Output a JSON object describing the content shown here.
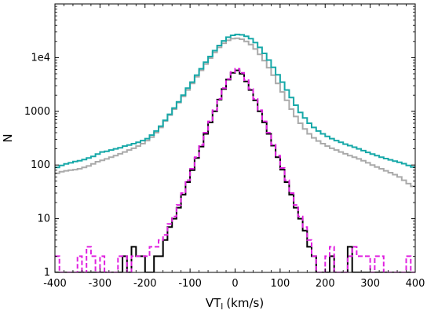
{
  "chart_data": {
    "type": "line",
    "style": "step-histogram",
    "xlabel": "VT",
    "xlabel_subscript": "l",
    "xlabel_unit": "(km/s)",
    "ylabel": "N",
    "xlim": [
      -400,
      400
    ],
    "ylim": [
      1,
      100000
    ],
    "yscale": "log",
    "grid": false,
    "bin_width": 10,
    "x_ticks": [
      -400,
      -300,
      -200,
      -100,
      0,
      100,
      200,
      300,
      400
    ],
    "x_tick_labels": [
      "-400",
      "-300",
      "-200",
      "-100",
      "0",
      "100",
      "200",
      "300",
      "400"
    ],
    "y_ticks": [
      1,
      10,
      100,
      1000,
      10000
    ],
    "y_tick_labels": [
      "1",
      "10",
      "100",
      "1000",
      "1e4"
    ],
    "series": [
      {
        "color": "#aaaaaa",
        "dashed": false,
        "values": [
          [
            -400,
            70
          ],
          [
            -390,
            75
          ],
          [
            -380,
            78
          ],
          [
            -370,
            80
          ],
          [
            -360,
            82
          ],
          [
            -350,
            85
          ],
          [
            -340,
            90
          ],
          [
            -330,
            96
          ],
          [
            -320,
            105
          ],
          [
            -310,
            115
          ],
          [
            -300,
            122
          ],
          [
            -290,
            130
          ],
          [
            -280,
            140
          ],
          [
            -270,
            150
          ],
          [
            -260,
            162
          ],
          [
            -250,
            175
          ],
          [
            -240,
            190
          ],
          [
            -230,
            205
          ],
          [
            -220,
            225
          ],
          [
            -210,
            250
          ],
          [
            -200,
            285
          ],
          [
            -190,
            330
          ],
          [
            -180,
            400
          ],
          [
            -170,
            500
          ],
          [
            -160,
            660
          ],
          [
            -150,
            850
          ],
          [
            -140,
            1100
          ],
          [
            -130,
            1450
          ],
          [
            -120,
            1900
          ],
          [
            -110,
            2500
          ],
          [
            -100,
            3300
          ],
          [
            -90,
            4400
          ],
          [
            -80,
            5800
          ],
          [
            -70,
            7600
          ],
          [
            -60,
            9800
          ],
          [
            -50,
            12500
          ],
          [
            -40,
            15500
          ],
          [
            -30,
            18500
          ],
          [
            -20,
            21000
          ],
          [
            -10,
            22500
          ],
          [
            0,
            23000
          ],
          [
            10,
            22000
          ],
          [
            20,
            20000
          ],
          [
            30,
            17500
          ],
          [
            40,
            14500
          ],
          [
            50,
            11500
          ],
          [
            60,
            8800
          ],
          [
            70,
            6500
          ],
          [
            80,
            4700
          ],
          [
            90,
            3300
          ],
          [
            100,
            2300
          ],
          [
            110,
            1600
          ],
          [
            120,
            1100
          ],
          [
            130,
            800
          ],
          [
            140,
            600
          ],
          [
            150,
            470
          ],
          [
            160,
            380
          ],
          [
            170,
            320
          ],
          [
            180,
            280
          ],
          [
            190,
            250
          ],
          [
            200,
            225
          ],
          [
            210,
            205
          ],
          [
            220,
            190
          ],
          [
            230,
            175
          ],
          [
            240,
            162
          ],
          [
            250,
            150
          ],
          [
            260,
            140
          ],
          [
            270,
            130
          ],
          [
            280,
            120
          ],
          [
            290,
            110
          ],
          [
            300,
            100
          ],
          [
            310,
            92
          ],
          [
            320,
            85
          ],
          [
            330,
            78
          ],
          [
            340,
            72
          ],
          [
            350,
            66
          ],
          [
            360,
            60
          ],
          [
            370,
            52
          ],
          [
            380,
            45
          ],
          [
            390,
            40
          ]
        ]
      },
      {
        "color": "#16a8a8",
        "dashed": false,
        "values": [
          [
            -400,
            90
          ],
          [
            -390,
            98
          ],
          [
            -380,
            105
          ],
          [
            -370,
            110
          ],
          [
            -360,
            116
          ],
          [
            -350,
            120
          ],
          [
            -340,
            126
          ],
          [
            -330,
            135
          ],
          [
            -320,
            145
          ],
          [
            -310,
            160
          ],
          [
            -300,
            175
          ],
          [
            -290,
            180
          ],
          [
            -280,
            190
          ],
          [
            -270,
            200
          ],
          [
            -260,
            210
          ],
          [
            -250,
            225
          ],
          [
            -240,
            235
          ],
          [
            -230,
            250
          ],
          [
            -220,
            265
          ],
          [
            -210,
            285
          ],
          [
            -200,
            310
          ],
          [
            -190,
            360
          ],
          [
            -180,
            430
          ],
          [
            -170,
            530
          ],
          [
            -160,
            680
          ],
          [
            -150,
            880
          ],
          [
            -140,
            1150
          ],
          [
            -130,
            1500
          ],
          [
            -120,
            2000
          ],
          [
            -110,
            2700
          ],
          [
            -100,
            3500
          ],
          [
            -90,
            4700
          ],
          [
            -80,
            6200
          ],
          [
            -70,
            8200
          ],
          [
            -60,
            10500
          ],
          [
            -50,
            13500
          ],
          [
            -40,
            16800
          ],
          [
            -30,
            20500
          ],
          [
            -20,
            24000
          ],
          [
            -10,
            26000
          ],
          [
            0,
            27000
          ],
          [
            10,
            26500
          ],
          [
            20,
            25000
          ],
          [
            30,
            22500
          ],
          [
            40,
            19000
          ],
          [
            50,
            15500
          ],
          [
            60,
            12000
          ],
          [
            70,
            9000
          ],
          [
            80,
            6600
          ],
          [
            90,
            4800
          ],
          [
            100,
            3500
          ],
          [
            110,
            2500
          ],
          [
            120,
            1800
          ],
          [
            130,
            1300
          ],
          [
            140,
            950
          ],
          [
            150,
            750
          ],
          [
            160,
            600
          ],
          [
            170,
            500
          ],
          [
            180,
            430
          ],
          [
            190,
            380
          ],
          [
            200,
            340
          ],
          [
            210,
            310
          ],
          [
            220,
            285
          ],
          [
            230,
            265
          ],
          [
            240,
            245
          ],
          [
            250,
            230
          ],
          [
            260,
            215
          ],
          [
            270,
            200
          ],
          [
            280,
            185
          ],
          [
            290,
            172
          ],
          [
            300,
            160
          ],
          [
            310,
            150
          ],
          [
            320,
            140
          ],
          [
            330,
            132
          ],
          [
            340,
            125
          ],
          [
            350,
            118
          ],
          [
            360,
            112
          ],
          [
            370,
            106
          ],
          [
            380,
            98
          ],
          [
            390,
            92
          ]
        ]
      },
      {
        "color": "#000000",
        "dashed": false,
        "values": [
          [
            -400,
            1
          ],
          [
            -390,
            1
          ],
          [
            -380,
            1
          ],
          [
            -370,
            1
          ],
          [
            -360,
            1
          ],
          [
            -350,
            1
          ],
          [
            -340,
            1
          ],
          [
            -330,
            1
          ],
          [
            -320,
            1
          ],
          [
            -310,
            1
          ],
          [
            -300,
            1
          ],
          [
            -290,
            1
          ],
          [
            -280,
            1
          ],
          [
            -270,
            1
          ],
          [
            -260,
            1
          ],
          [
            -250,
            2
          ],
          [
            -240,
            1
          ],
          [
            -230,
            3
          ],
          [
            -220,
            2
          ],
          [
            -210,
            2
          ],
          [
            -200,
            1
          ],
          [
            -190,
            1
          ],
          [
            -180,
            2
          ],
          [
            -170,
            2
          ],
          [
            -160,
            4
          ],
          [
            -150,
            7
          ],
          [
            -140,
            10
          ],
          [
            -130,
            16
          ],
          [
            -120,
            28
          ],
          [
            -110,
            48
          ],
          [
            -100,
            80
          ],
          [
            -90,
            135
          ],
          [
            -80,
            220
          ],
          [
            -70,
            380
          ],
          [
            -60,
            620
          ],
          [
            -50,
            1000
          ],
          [
            -40,
            1650
          ],
          [
            -30,
            2600
          ],
          [
            -20,
            3900
          ],
          [
            -10,
            5200
          ],
          [
            0,
            5800
          ],
          [
            10,
            5000
          ],
          [
            20,
            3600
          ],
          [
            30,
            2500
          ],
          [
            40,
            1600
          ],
          [
            50,
            1000
          ],
          [
            60,
            620
          ],
          [
            70,
            380
          ],
          [
            80,
            230
          ],
          [
            90,
            140
          ],
          [
            100,
            82
          ],
          [
            110,
            48
          ],
          [
            120,
            28
          ],
          [
            130,
            16
          ],
          [
            140,
            10
          ],
          [
            150,
            6
          ],
          [
            160,
            3
          ],
          [
            170,
            2
          ],
          [
            180,
            1
          ],
          [
            190,
            1
          ],
          [
            200,
            1
          ],
          [
            210,
            2
          ],
          [
            220,
            1
          ],
          [
            230,
            1
          ],
          [
            240,
            1
          ],
          [
            250,
            3
          ],
          [
            260,
            1
          ],
          [
            270,
            1
          ],
          [
            280,
            1
          ],
          [
            290,
            1
          ],
          [
            300,
            1
          ],
          [
            310,
            1
          ],
          [
            320,
            1
          ],
          [
            330,
            1
          ],
          [
            340,
            1
          ],
          [
            350,
            1
          ],
          [
            360,
            1
          ],
          [
            370,
            1
          ],
          [
            380,
            1
          ],
          [
            390,
            1
          ]
        ]
      },
      {
        "color": "#e020e0",
        "dashed": true,
        "values": [
          [
            -400,
            2
          ],
          [
            -390,
            1
          ],
          [
            -380,
            1
          ],
          [
            -370,
            1
          ],
          [
            -360,
            1
          ],
          [
            -350,
            2
          ],
          [
            -340,
            1
          ],
          [
            -330,
            3
          ],
          [
            -320,
            2
          ],
          [
            -310,
            1
          ],
          [
            -300,
            2
          ],
          [
            -290,
            1
          ],
          [
            -280,
            1
          ],
          [
            -270,
            1
          ],
          [
            -260,
            2
          ],
          [
            -250,
            2
          ],
          [
            -240,
            1
          ],
          [
            -230,
            2
          ],
          [
            -220,
            2
          ],
          [
            -210,
            2
          ],
          [
            -200,
            2
          ],
          [
            -190,
            3
          ],
          [
            -180,
            3
          ],
          [
            -170,
            4
          ],
          [
            -160,
            5
          ],
          [
            -150,
            8
          ],
          [
            -140,
            11
          ],
          [
            -130,
            18
          ],
          [
            -120,
            30
          ],
          [
            -110,
            52
          ],
          [
            -100,
            85
          ],
          [
            -90,
            140
          ],
          [
            -80,
            235
          ],
          [
            -70,
            400
          ],
          [
            -60,
            650
          ],
          [
            -50,
            1050
          ],
          [
            -40,
            1700
          ],
          [
            -30,
            2700
          ],
          [
            -20,
            4000
          ],
          [
            -10,
            5400
          ],
          [
            0,
            6200
          ],
          [
            10,
            5200
          ],
          [
            20,
            3800
          ],
          [
            30,
            2600
          ],
          [
            40,
            1700
          ],
          [
            50,
            1050
          ],
          [
            60,
            650
          ],
          [
            70,
            400
          ],
          [
            80,
            240
          ],
          [
            90,
            150
          ],
          [
            100,
            88
          ],
          [
            110,
            52
          ],
          [
            120,
            30
          ],
          [
            130,
            18
          ],
          [
            140,
            11
          ],
          [
            150,
            7
          ],
          [
            160,
            4
          ],
          [
            170,
            2
          ],
          [
            180,
            1
          ],
          [
            190,
            1
          ],
          [
            200,
            2
          ],
          [
            210,
            3
          ],
          [
            220,
            1
          ],
          [
            230,
            1
          ],
          [
            240,
            1
          ],
          [
            250,
            2
          ],
          [
            260,
            3
          ],
          [
            270,
            2
          ],
          [
            280,
            2
          ],
          [
            290,
            2
          ],
          [
            300,
            1
          ],
          [
            310,
            2
          ],
          [
            320,
            2
          ],
          [
            330,
            1
          ],
          [
            340,
            1
          ],
          [
            350,
            1
          ],
          [
            360,
            1
          ],
          [
            370,
            1
          ],
          [
            380,
            2
          ],
          [
            390,
            1
          ]
        ]
      }
    ]
  }
}
